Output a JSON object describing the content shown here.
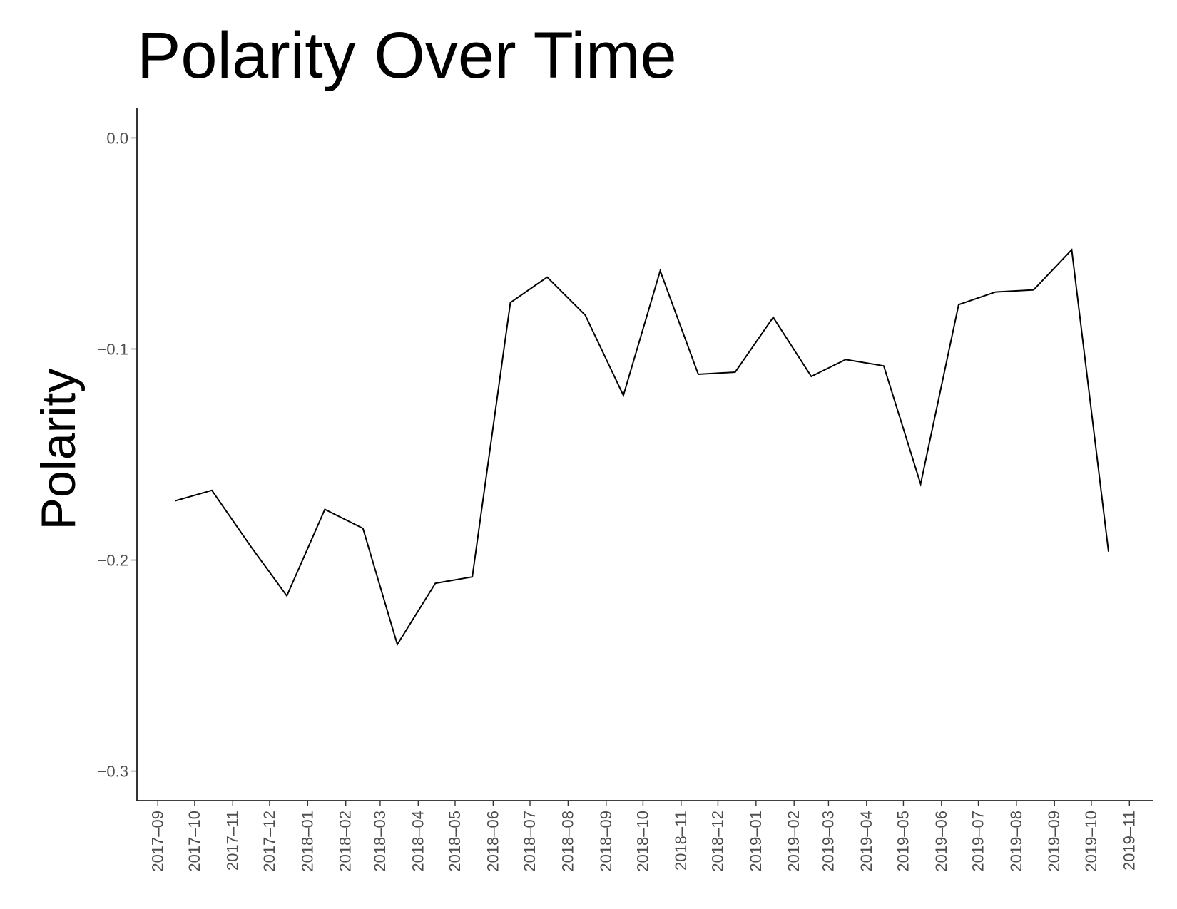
{
  "chart_data": {
    "type": "line",
    "title": "Polarity Over Time",
    "xlabel": "",
    "ylabel": "Polarity",
    "x_ticks": [
      "2017–09",
      "2017–10",
      "2017–11",
      "2017–12",
      "2018–01",
      "2018–02",
      "2018–03",
      "2018–04",
      "2018–05",
      "2018–06",
      "2018–07",
      "2018–08",
      "2018–09",
      "2018–10",
      "2018–11",
      "2018–12",
      "2019–01",
      "2019–02",
      "2019–03",
      "2019–04",
      "2019–05",
      "2019–06",
      "2019–07",
      "2019–08",
      "2019–09",
      "2019–10",
      "2019–11"
    ],
    "y_ticks": [
      "0.0",
      "−0.1",
      "−0.2",
      "−0.3"
    ],
    "y_tick_values": [
      0.0,
      -0.1,
      -0.2,
      -0.3
    ],
    "ylim": [
      -0.314,
      0.014
    ],
    "xlim": [
      "2017-08-15",
      "2019-11-20"
    ],
    "grid": false,
    "legend": "none",
    "line_color": "#000000",
    "series": [
      {
        "x": [
          "2017-09-15",
          "2017-10-15",
          "2017-11-15",
          "2017-12-15",
          "2018-01-15",
          "2018-02-15",
          "2018-03-15",
          "2018-04-15",
          "2018-05-15",
          "2018-06-15",
          "2018-07-15",
          "2018-08-15",
          "2018-09-15",
          "2018-10-15",
          "2018-11-15",
          "2018-12-15",
          "2019-01-15",
          "2019-02-15",
          "2019-03-15",
          "2019-04-15",
          "2019-05-15",
          "2019-06-15",
          "2019-07-15",
          "2019-08-15",
          "2019-09-15",
          "2019-10-15"
        ],
        "values": [
          -0.172,
          -0.167,
          -0.193,
          -0.217,
          -0.176,
          -0.185,
          -0.24,
          -0.211,
          -0.208,
          -0.078,
          -0.066,
          -0.084,
          -0.122,
          -0.063,
          -0.112,
          -0.111,
          -0.085,
          -0.113,
          -0.105,
          -0.108,
          -0.164,
          -0.079,
          -0.073,
          -0.072,
          -0.053,
          -0.196
        ]
      }
    ]
  }
}
